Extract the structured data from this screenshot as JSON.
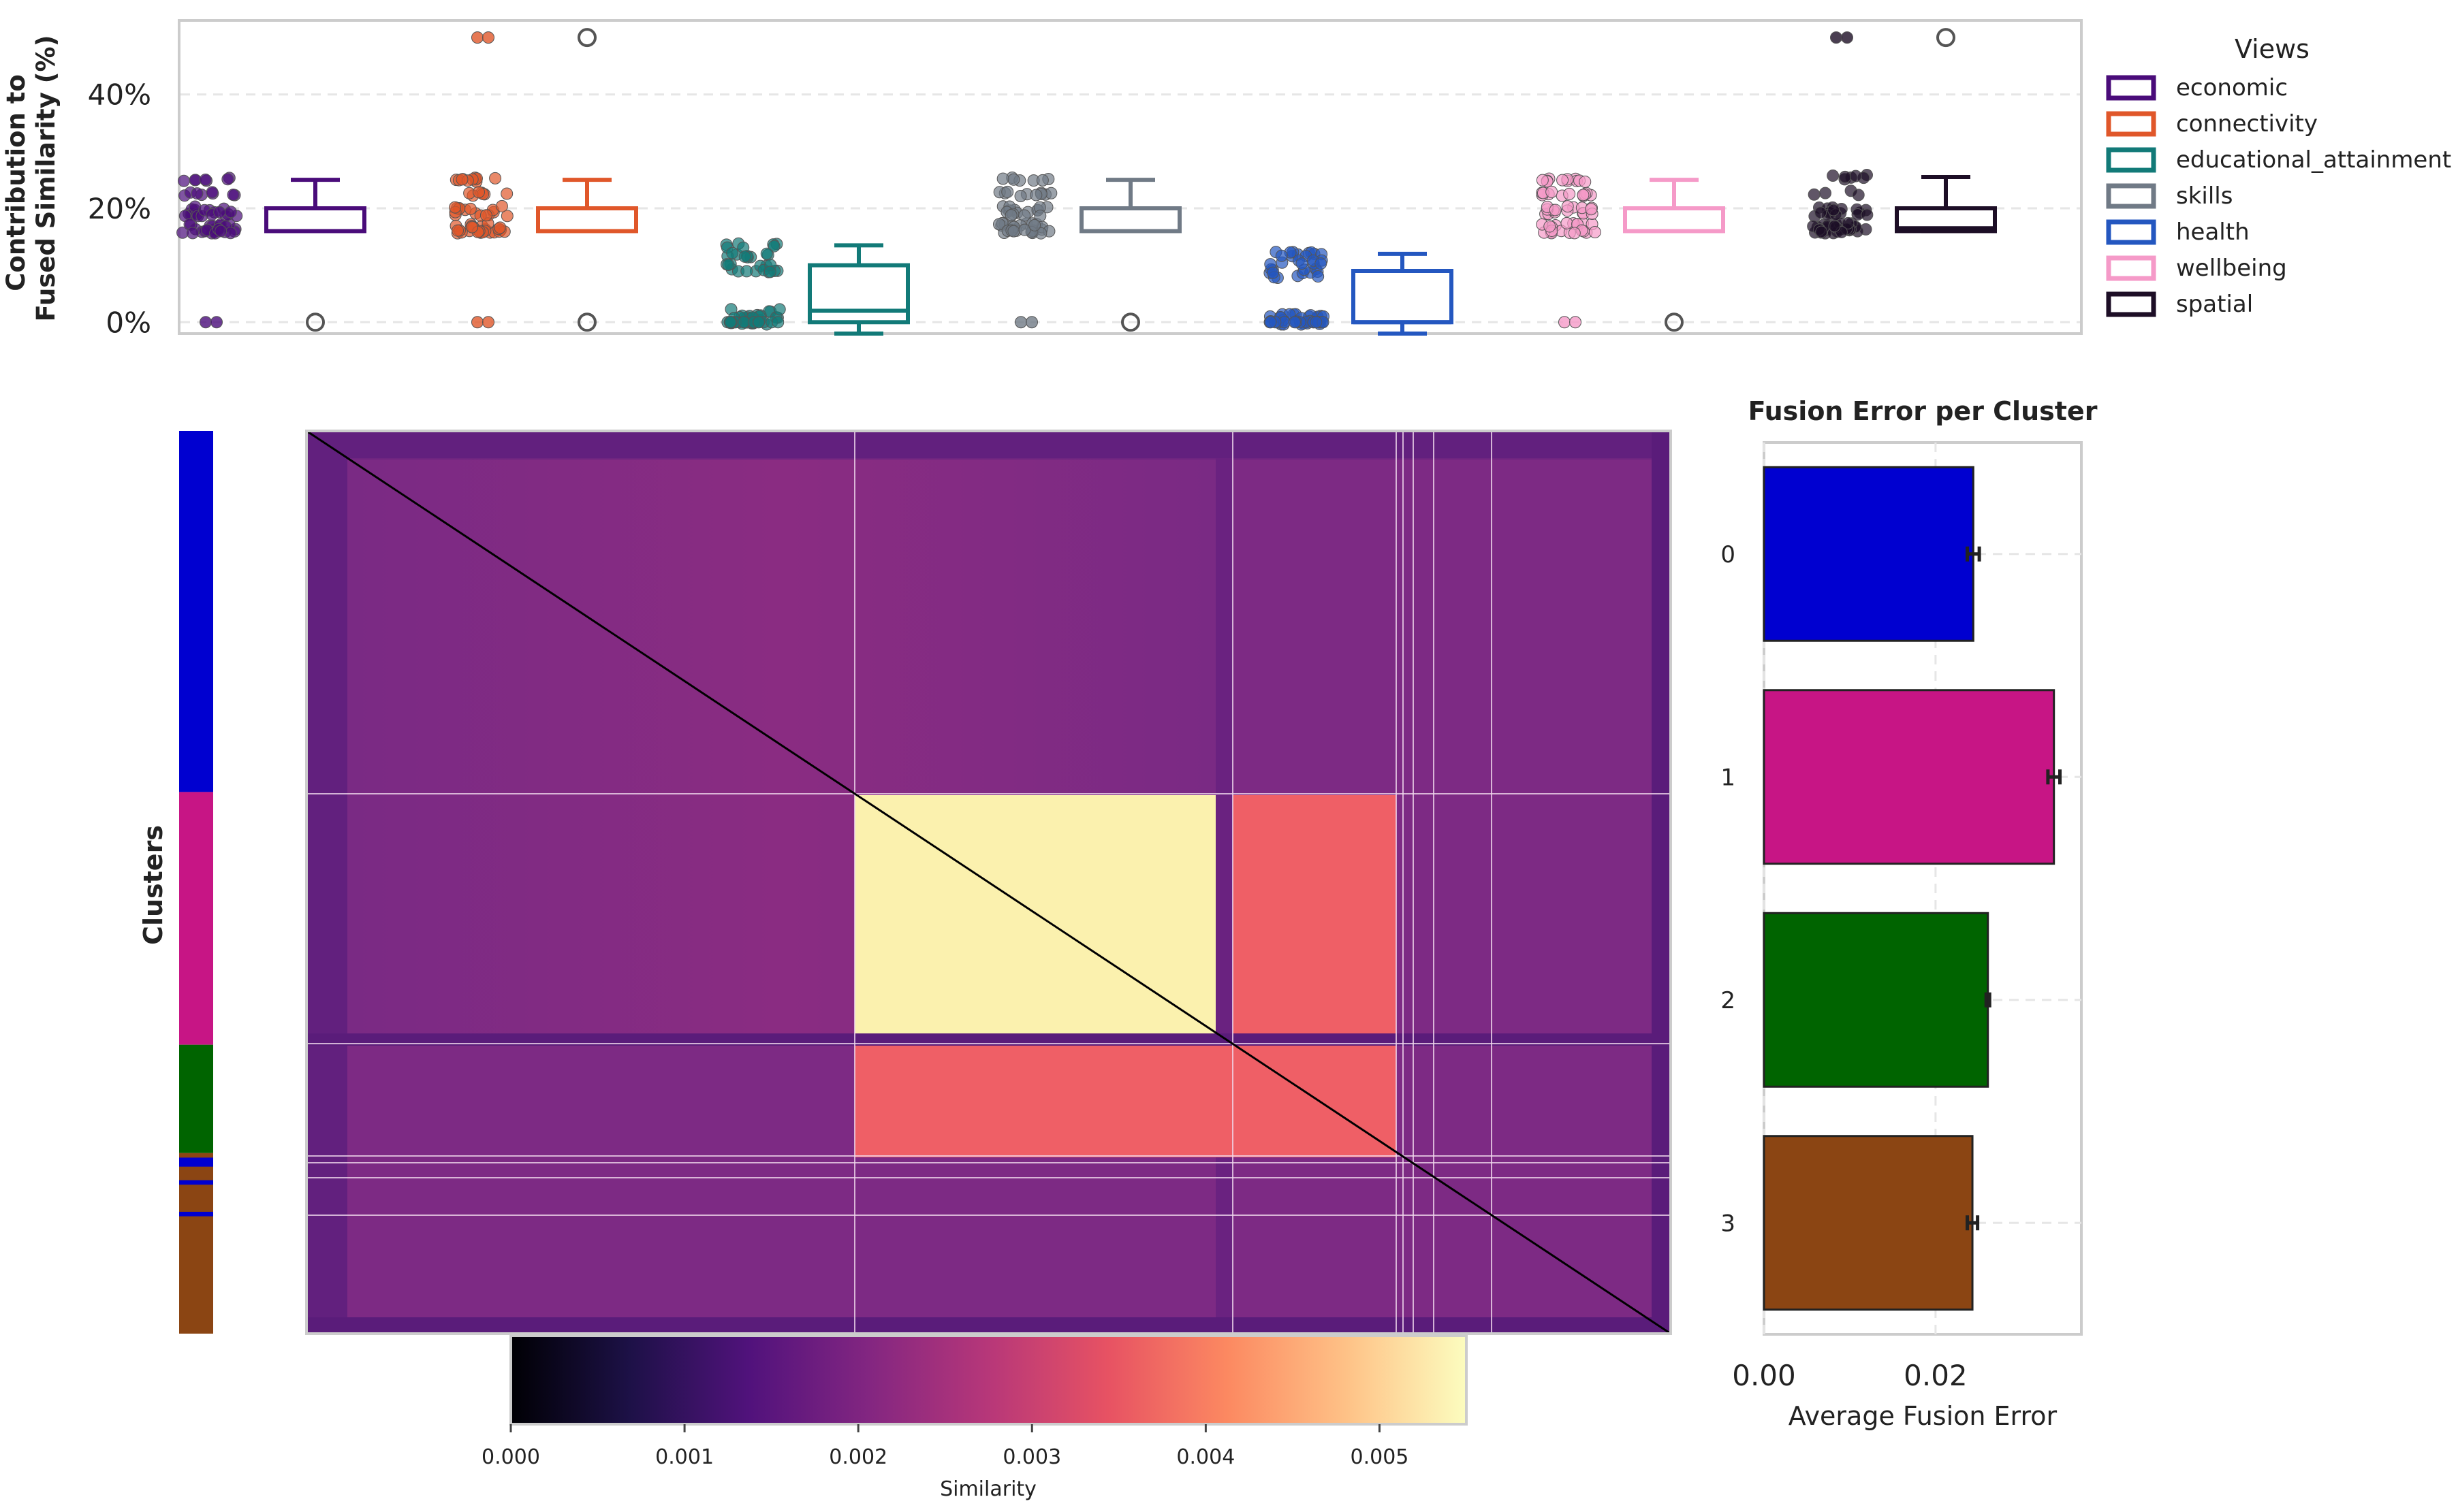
{
  "colors": {
    "economic": "#4a0c7a",
    "connectivity": "#e0572a",
    "educational_attainment": "#127a78",
    "skills": "#707a86",
    "health": "#2457c0",
    "wellbeing": "#f59ac8",
    "spatial": "#1d0e26",
    "cluster_0": "#0000d0",
    "cluster_1": "#c71585",
    "cluster_2": "#006400",
    "cluster_3": "#8b4513",
    "heatmap_background": "#6e2580",
    "heatmap_light": "#fbf1ae",
    "heatmap_coral": "#ef5f66"
  },
  "chart_data": [
    {
      "type": "box",
      "ylabel": "Contribution to\nFused Similarity (%)",
      "ylim": [
        -2,
        53
      ],
      "yticks": [
        0,
        20,
        40
      ],
      "ytick_labels": [
        "0%",
        "20%",
        "40%"
      ],
      "legend": {
        "title": "Views",
        "placement": "right"
      },
      "series": [
        {
          "name": "economic",
          "q1": 16,
          "median": 16,
          "q3": 20,
          "whisker_low": 16,
          "whisker_high": 25,
          "outliers": [
            0
          ]
        },
        {
          "name": "connectivity",
          "q1": 16,
          "median": 16,
          "q3": 20,
          "whisker_low": 16,
          "whisker_high": 25,
          "outliers": [
            0,
            50
          ]
        },
        {
          "name": "educational_attainment",
          "q1": 0,
          "median": 2,
          "q3": 10,
          "whisker_low": -2,
          "whisker_high": 13.5,
          "outliers": []
        },
        {
          "name": "skills",
          "q1": 16,
          "median": 16,
          "q3": 20,
          "whisker_low": 16,
          "whisker_high": 25,
          "outliers": [
            0
          ]
        },
        {
          "name": "health",
          "q1": 0,
          "median": 0,
          "q3": 9,
          "whisker_low": -2,
          "whisker_high": 12,
          "outliers": []
        },
        {
          "name": "wellbeing",
          "q1": 16,
          "median": 16,
          "q3": 20,
          "whisker_low": 16,
          "whisker_high": 25,
          "outliers": [
            0
          ]
        },
        {
          "name": "spatial",
          "q1": 16,
          "median": 16.5,
          "q3": 20,
          "whisker_low": 16,
          "whisker_high": 25.5,
          "outliers": [
            50
          ]
        }
      ]
    },
    {
      "type": "heatmap",
      "ylabel": "Clusters",
      "colorbar": {
        "label": "Similarity",
        "range": [
          0,
          0.0055
        ],
        "ticks": [
          0,
          0.001,
          0.002,
          0.003,
          0.004,
          0.005
        ],
        "tick_labels": [
          "0.000",
          "0.001",
          "0.002",
          "0.003",
          "0.004",
          "0.005"
        ],
        "stops": [
          "#000004",
          "#1d1147",
          "#51127c",
          "#832681",
          "#b73779",
          "#e75263",
          "#fc8961",
          "#fec287",
          "#fcfdbf"
        ]
      },
      "cluster_bands": [
        {
          "cluster": "0",
          "fraction_start": 0,
          "fraction_end": 0.4
        },
        {
          "cluster": "1",
          "fraction_start": 0.4,
          "fraction_end": 0.68
        },
        {
          "cluster": "2",
          "fraction_start": 0.68,
          "fraction_end": 0.8
        },
        {
          "cluster": "3",
          "fraction_start": 0.8,
          "fraction_end": 1.0
        }
      ]
    },
    {
      "type": "bar",
      "orientation": "horizontal",
      "title": "Fusion Error per Cluster",
      "xlabel": "Average Fusion Error",
      "categories": [
        "0",
        "1",
        "2",
        "3"
      ],
      "values": [
        0.0244,
        0.0338,
        0.0261,
        0.0243
      ],
      "errors": [
        0.0007,
        0.0007,
        0.0002,
        0.0006
      ],
      "xlim": [
        0,
        0.037
      ],
      "xticks": [
        0,
        0.02
      ],
      "xtick_labels": [
        "0.00",
        "0.02"
      ]
    }
  ]
}
